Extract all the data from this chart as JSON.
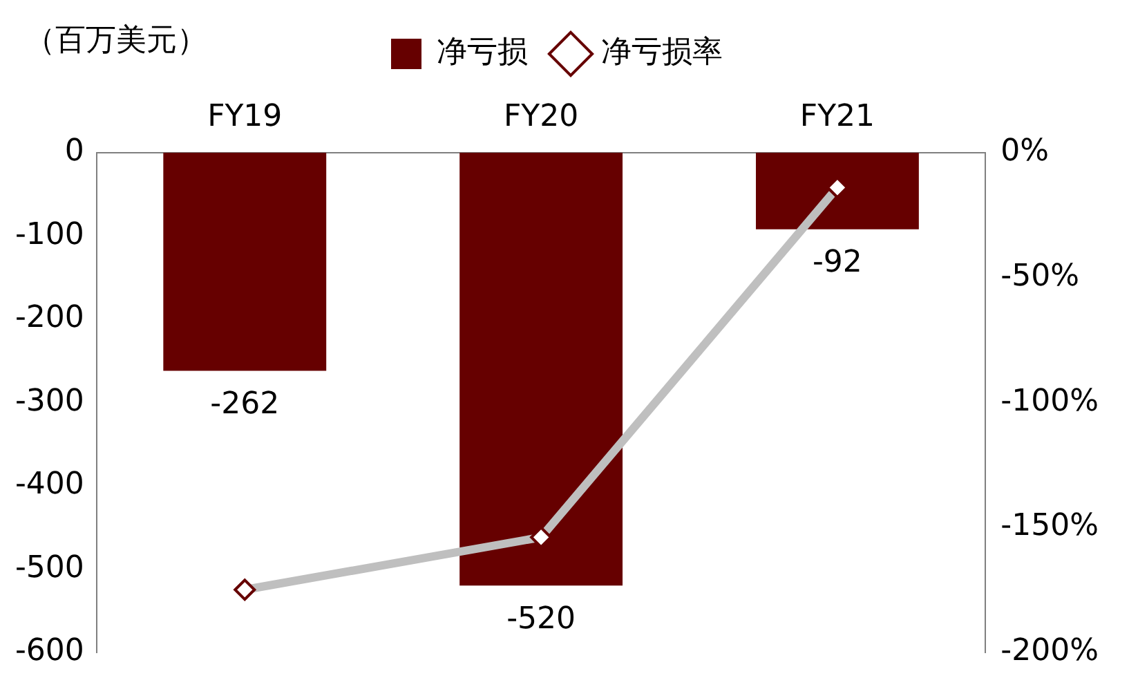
{
  "chart_data": {
    "type": "bar",
    "ylabel": "（百万美元）",
    "categories": [
      "FY19",
      "FY20",
      "FY21"
    ],
    "series": [
      {
        "name": "净亏损",
        "color": "#660000",
        "values": [
          -262,
          -520,
          -92
        ],
        "value_labels": [
          "-262",
          "-520",
          "-92"
        ]
      },
      {
        "name": "净亏损率",
        "type": "line",
        "axis": "y2",
        "color": "#bfbfbf",
        "values": [
          -175,
          -154,
          -14
        ]
      }
    ],
    "ylim": [
      -600,
      0
    ],
    "yticks": [
      -600,
      -500,
      -400,
      -300,
      -200,
      -100,
      0
    ],
    "y2lim": [
      -200,
      0
    ],
    "y2ticks": [
      {
        "value": -200,
        "label": "-200%"
      },
      {
        "value": -150,
        "label": "-150%"
      },
      {
        "value": -100,
        "label": "-100%"
      },
      {
        "value": -50,
        "label": "-50%"
      },
      {
        "value": 0,
        "label": "0%"
      }
    ],
    "legend": "top",
    "grid": false,
    "marker": "diamond",
    "line_style": "solid"
  }
}
